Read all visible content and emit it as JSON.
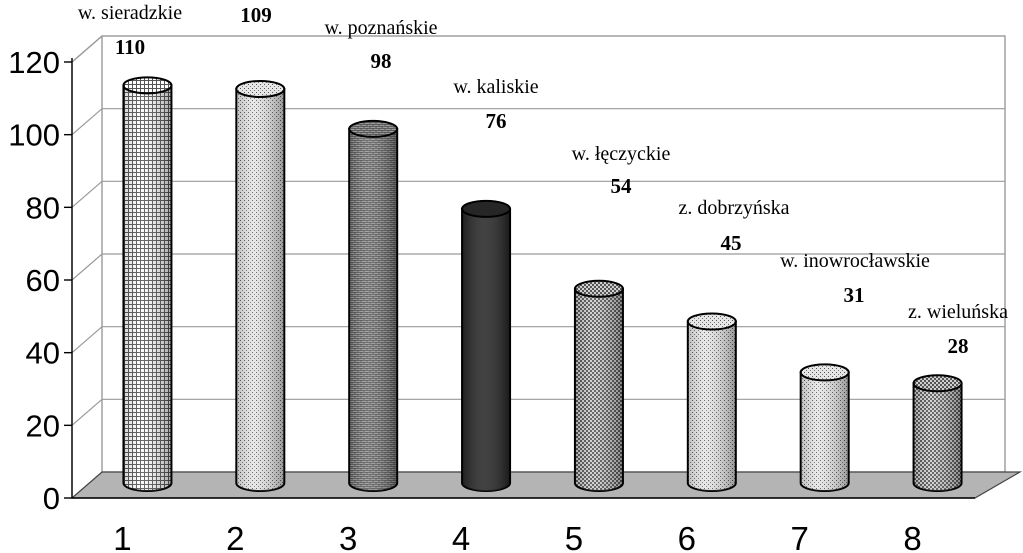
{
  "chart_data": {
    "type": "bar",
    "categories": [
      "1",
      "2",
      "3",
      "4",
      "5",
      "6",
      "7",
      "8"
    ],
    "values": [
      110,
      109,
      98,
      76,
      54,
      45,
      31,
      28
    ],
    "bar_names": [
      "w. sieradzkie",
      "",
      "w. poznańskie",
      "w. kaliskie",
      "w. łęczyckie",
      "z. dobrzyńska",
      "w. inowrocławskie",
      "z. wieluńska"
    ],
    "bar_fills": [
      "grid",
      "dots",
      "brick",
      "solid",
      "checker",
      "dots",
      "dots",
      "checker"
    ],
    "y_ticks": [
      "0",
      "20",
      "40",
      "60",
      "80",
      "100",
      "120"
    ],
    "ylim": [
      0,
      120
    ],
    "bar_shape": "cylinder",
    "grid": true,
    "title": "",
    "xlabel": "",
    "ylabel": "",
    "colors": {
      "floor": "#b4b4b4",
      "wall": "#ffffff",
      "gridline": "#9a9a9a",
      "solid_bar": "#262626"
    }
  }
}
